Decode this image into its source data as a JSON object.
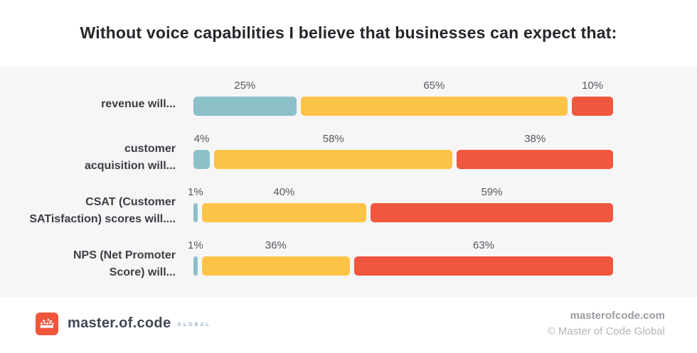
{
  "title": "Without voice capabilities I believe that businesses can expect that:",
  "chart_data": {
    "type": "bar",
    "subtype": "stacked-horizontal",
    "title": "Without voice capabilities I believe that businesses can expect that:",
    "categories": [
      "revenue will...",
      "customer\nacquisition will...",
      "CSAT (Customer\nSATisfaction) scores will....",
      "NPS (Net Promoter\nScore) will..."
    ],
    "series": [
      {
        "name": "series-1",
        "color": "#8cc0c9",
        "values": [
          25,
          4,
          1,
          1
        ]
      },
      {
        "name": "series-2",
        "color": "#fdc347",
        "values": [
          65,
          58,
          40,
          36
        ]
      },
      {
        "name": "series-3",
        "color": "#f0573e",
        "values": [
          10,
          38,
          59,
          63
        ]
      }
    ],
    "value_suffix": "%",
    "xlim": [
      0,
      100
    ],
    "grid": false,
    "legend": "none",
    "value_labels_position": "above-segment"
  },
  "colors": {
    "chart_background": "#f6f6f7",
    "page_background": "#ffffff",
    "title_text": "#24262b",
    "category_text": "#3b3e44",
    "value_text": "#55585e",
    "brand_accent": "#f0563c"
  },
  "footer": {
    "logo_text": "master.of.code",
    "logo_subtext": "GLOBAL",
    "website": "masterofcode.com",
    "copyright": "© Master of Code Global"
  }
}
